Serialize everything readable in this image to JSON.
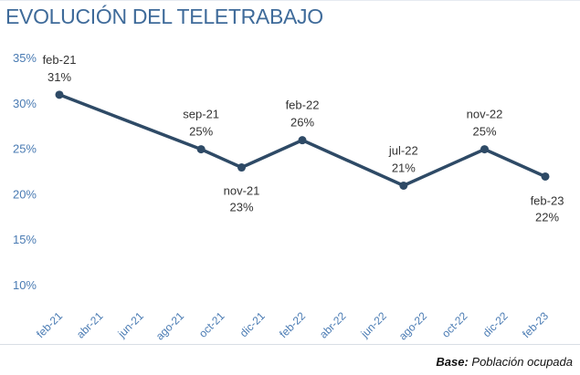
{
  "chart_data": {
    "type": "line",
    "title": "EVOLUCIÓN DEL TELETRABAJO",
    "xlabel": "",
    "ylabel": "",
    "ylim": [
      10,
      35
    ],
    "y_ticks": [
      "10%",
      "15%",
      "20%",
      "25%",
      "30%",
      "35%"
    ],
    "y_tick_values": [
      10,
      15,
      20,
      25,
      30,
      35
    ],
    "x_ticks": [
      "feb-21",
      "abr-21",
      "jun-21",
      "ago-21",
      "oct-21",
      "dic-21",
      "feb-22",
      "abr-22",
      "jun-22",
      "ago-22",
      "oct-22",
      "dic-22",
      "feb-23"
    ],
    "grid": false,
    "series": [
      {
        "name": "Teletrabajo",
        "color": "#2e4a66",
        "points": [
          {
            "date": "feb-21",
            "month_index": 0,
            "value": 31,
            "label_date": "feb-21",
            "label_value": "31%",
            "label_position": "above"
          },
          {
            "date": "sep-21",
            "month_index": 7,
            "value": 25,
            "label_date": "sep-21",
            "label_value": "25%",
            "label_position": "above"
          },
          {
            "date": "nov-21",
            "month_index": 9,
            "value": 23,
            "label_date": "nov-21",
            "label_value": "23%",
            "label_position": "below"
          },
          {
            "date": "feb-22",
            "month_index": 12,
            "value": 26,
            "label_date": "feb-22",
            "label_value": "26%",
            "label_position": "above"
          },
          {
            "date": "jul-22",
            "month_index": 17,
            "value": 21,
            "label_date": "jul-22",
            "label_value": "21%",
            "label_position": "above"
          },
          {
            "date": "nov-22",
            "month_index": 21,
            "value": 25,
            "label_date": "nov-22",
            "label_value": "25%",
            "label_position": "above"
          },
          {
            "date": "feb-23",
            "month_index": 24,
            "value": 22,
            "label_date": "feb-23",
            "label_value": "22%",
            "label_position": "below-right"
          }
        ]
      }
    ]
  },
  "footer": {
    "base_label": "Base:",
    "base_value": "Población ocupada"
  },
  "colors": {
    "title": "#3f6b9a",
    "axis_text": "#4a7bb3",
    "line": "#2e4a66",
    "label_text": "#333333"
  }
}
